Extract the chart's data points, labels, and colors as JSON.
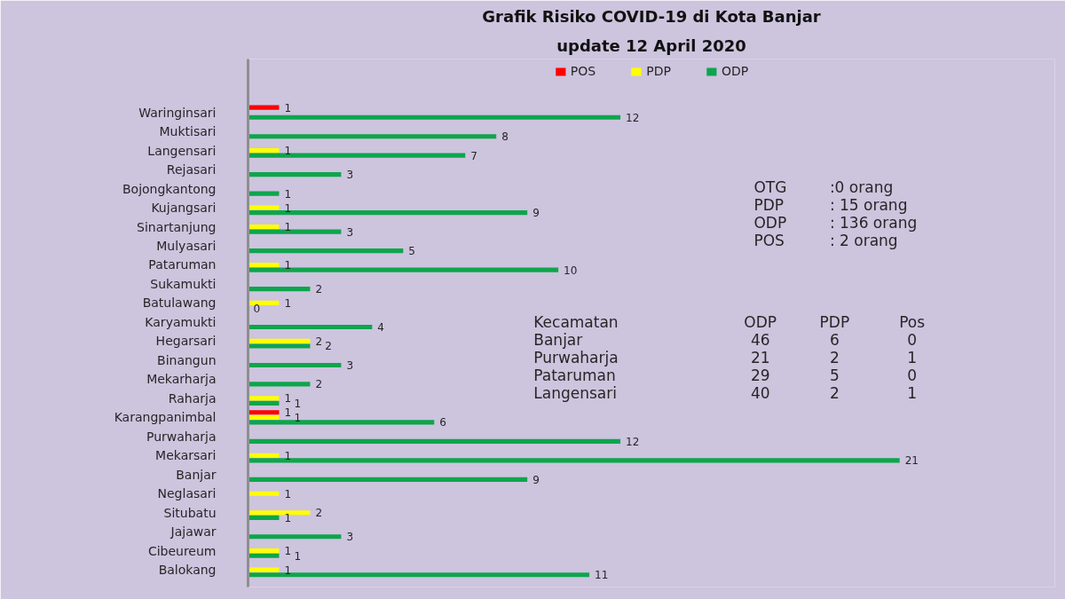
{
  "chart_data": {
    "type": "bar",
    "orientation": "horizontal",
    "title": "Grafik Risiko COVID-19 di Kota Banjar",
    "subtitle": "update 12 April 2020",
    "categories": [
      "Waringinsari",
      "Muktisari",
      "Langensari",
      "Rejasari",
      "Bojongkantong",
      "Kujangsari",
      "Sinartanjung",
      "Mulyasari",
      "Pataruman",
      "Sukamukti",
      "Batulawang",
      "Karyamukti",
      "Hegarsari",
      "Binangun",
      "Mekarharja",
      "Raharja",
      "Karangpanimbal",
      "Purwaharja",
      "Mekarsari",
      "Banjar",
      "Neglasari",
      "Situbatu",
      "Jajawar",
      "Cibeureum",
      "Balokang"
    ],
    "series": [
      {
        "name": "POS",
        "color": "#ff0000",
        "values": [
          1,
          null,
          null,
          null,
          null,
          null,
          null,
          null,
          null,
          null,
          null,
          null,
          null,
          null,
          null,
          null,
          1,
          null,
          null,
          null,
          null,
          null,
          null,
          null,
          null
        ]
      },
      {
        "name": "PDP",
        "color": "#ffff00",
        "values": [
          null,
          null,
          1,
          null,
          null,
          1,
          1,
          null,
          1,
          null,
          1,
          null,
          2,
          null,
          null,
          1,
          1,
          null,
          1,
          null,
          1,
          2,
          null,
          1,
          1
        ]
      },
      {
        "name": "ODP",
        "color": "#0ea54c",
        "values": [
          12,
          8,
          7,
          3,
          1,
          9,
          3,
          5,
          10,
          2,
          0,
          4,
          2,
          3,
          2,
          1,
          6,
          12,
          21,
          9,
          null,
          1,
          3,
          1,
          11
        ]
      }
    ],
    "xlim": [
      0,
      26
    ],
    "tick_labels": "y",
    "data_labels": true,
    "legend": "top",
    "annotations": [
      "OTG",
      ":0 orang",
      "PDP",
      ": 15 orang",
      "ODP",
      ": 136 orang",
      "POS",
      ": 2 orang",
      "Kecamatan",
      "ODP",
      "PDP",
      "Pos",
      "Banjar",
      "46",
      "6",
      "0",
      "Purwaharja",
      "21",
      "2",
      "1",
      "Pataruman",
      "29",
      "5",
      "0",
      "Langensari",
      "40",
      "2",
      "1"
    ]
  }
}
